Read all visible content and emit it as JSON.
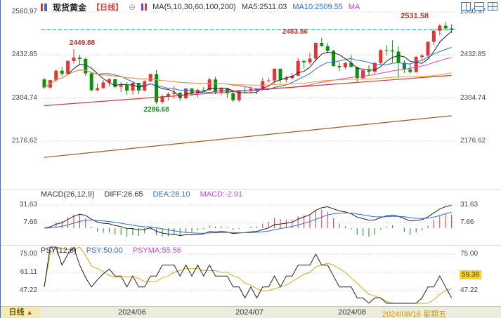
{
  "header": {
    "symbol": "现货黄金",
    "period": "【日线】",
    "collapse": "⊖",
    "ma_group": "MA(5,10,30,60,100,200)",
    "ma5": "MA5:2511.03",
    "ma10": "MA10:2509.55",
    "ma_overflow": "MA"
  },
  "main_axis": {
    "left": [
      "2560.97",
      "2432.85",
      "2304.74",
      "2176.62"
    ],
    "right": [
      "2560.97",
      "2432.85",
      "2304.74",
      "2176.62"
    ]
  },
  "macd": {
    "title": "MACD(26,12,9)",
    "diff_label": "DIFF:26.65",
    "dea_label": "DEA:28.10",
    "macd_label": "MACD:-2.91",
    "axis_left": [
      "31.63",
      "7.66"
    ],
    "axis_right": [
      "31.63",
      "7.66"
    ]
  },
  "psy": {
    "title": "PSY(12,6)",
    "psy_label": "PSY:50.00",
    "psyma_label": "PSYMA:55.56",
    "axis_left": [
      "75.00",
      "61.11",
      "47.22"
    ],
    "axis_right_top": "75.00",
    "axis_right_badge": "59.38",
    "axis_right_bottom": "47.22"
  },
  "bottom": {
    "period_tab": "日线",
    "arrow": "▲",
    "months": [
      "2024/06",
      "2024/07",
      "2024/08"
    ],
    "last_date": "2024/08/16 星期五"
  },
  "chart_data": {
    "type": "candlestick",
    "title": "现货黄金 日线 (Spot Gold Daily)",
    "x_range": [
      "2024-05-13",
      "2024-08-16"
    ],
    "y_axis_ticks": [
      2560.97,
      2432.85,
      2304.74,
      2176.62
    ],
    "latest_price_line": 2508,
    "up_color": "#e23535",
    "down_color": "#0f8f0f",
    "candles_ohlc": [
      [
        2360,
        2365,
        2332,
        2336
      ],
      [
        2336,
        2359,
        2333,
        2358
      ],
      [
        2358,
        2390,
        2352,
        2386
      ],
      [
        2386,
        2397,
        2371,
        2377
      ],
      [
        2377,
        2417,
        2375,
        2415
      ],
      [
        2415,
        2449.88,
        2407,
        2425
      ],
      [
        2425,
        2433,
        2404,
        2421
      ],
      [
        2421,
        2426,
        2370,
        2378
      ],
      [
        2378,
        2383,
        2325,
        2328
      ],
      [
        2328,
        2347,
        2325,
        2334
      ],
      [
        2334,
        2358,
        2332,
        2351
      ],
      [
        2351,
        2364,
        2339,
        2361
      ],
      [
        2361,
        2362,
        2333,
        2338
      ],
      [
        2338,
        2352,
        2322,
        2343
      ],
      [
        2343,
        2352,
        2314,
        2327
      ],
      [
        2327,
        2354,
        2315,
        2350
      ],
      [
        2350,
        2350,
        2316,
        2327
      ],
      [
        2327,
        2357,
        2325,
        2355
      ],
      [
        2355,
        2378,
        2352,
        2376
      ],
      [
        2376,
        2388,
        2286.68,
        2293
      ],
      [
        2293,
        2316,
        2287,
        2310
      ],
      [
        2310,
        2322,
        2297,
        2317
      ],
      [
        2317,
        2341,
        2303,
        2321
      ],
      [
        2321,
        2321,
        2296,
        2304
      ],
      [
        2304,
        2334,
        2301,
        2333
      ],
      [
        2333,
        2333,
        2310,
        2319
      ],
      [
        2319,
        2332,
        2306,
        2329
      ],
      [
        2329,
        2337,
        2322,
        2328
      ],
      [
        2328,
        2365,
        2327,
        2360
      ],
      [
        2360,
        2368,
        2316,
        2322
      ],
      [
        2322,
        2334,
        2313,
        2334
      ],
      [
        2334,
        2335,
        2306,
        2319
      ],
      [
        2319,
        2323,
        2293,
        2298
      ],
      [
        2298,
        2327,
        2293,
        2327
      ],
      [
        2327,
        2339,
        2319,
        2326
      ],
      [
        2326,
        2339,
        2318,
        2332
      ],
      [
        2332,
        2334,
        2316,
        2329
      ],
      [
        2329,
        2365,
        2327,
        2355
      ],
      [
        2355,
        2365,
        2352,
        2357
      ],
      [
        2357,
        2393,
        2348,
        2392
      ],
      [
        2392,
        2392,
        2349,
        2359
      ],
      [
        2359,
        2371,
        2351,
        2364
      ],
      [
        2364,
        2379,
        2360,
        2371
      ],
      [
        2371,
        2424,
        2371,
        2415
      ],
      [
        2415,
        2418,
        2391,
        2411
      ],
      [
        2411,
        2439,
        2404,
        2422
      ],
      [
        2422,
        2470,
        2414,
        2469
      ],
      [
        2469,
        2483.56,
        2458,
        2459
      ],
      [
        2459,
        2469,
        2437,
        2445
      ],
      [
        2445,
        2448,
        2398,
        2400
      ],
      [
        2400,
        2412,
        2384,
        2396
      ],
      [
        2396,
        2412,
        2391,
        2409
      ],
      [
        2409,
        2432,
        2396,
        2397
      ],
      [
        2397,
        2398,
        2353,
        2364
      ],
      [
        2364,
        2390,
        2360,
        2387
      ],
      [
        2387,
        2403,
        2373,
        2383
      ],
      [
        2383,
        2412,
        2375,
        2409
      ],
      [
        2409,
        2450,
        2404,
        2447
      ],
      [
        2447,
        2462,
        2432,
        2446
      ],
      [
        2446,
        2477,
        2411,
        2443
      ],
      [
        2443,
        2458,
        2364,
        2410
      ],
      [
        2410,
        2418,
        2379,
        2390
      ],
      [
        2390,
        2407,
        2378,
        2382
      ],
      [
        2382,
        2430,
        2380,
        2427
      ],
      [
        2427,
        2436,
        2414,
        2431
      ],
      [
        2431,
        2473,
        2423,
        2472
      ],
      [
        2472,
        2510,
        2462,
        2505
      ],
      [
        2505,
        2525,
        2492,
        2520
      ],
      [
        2520,
        2531.58,
        2505,
        2512
      ],
      [
        2512,
        2524,
        2498,
        2508
      ]
    ],
    "annotations": [
      {
        "text": "2449.88",
        "index": 5,
        "value": 2449.88,
        "pos": "above",
        "dx": 12,
        "color": "#d42a2a"
      },
      {
        "text": "2286.68",
        "index": 19,
        "value": 2286.68,
        "pos": "below",
        "dx": 0,
        "color": "#15931d"
      },
      {
        "text": "2483.56",
        "index": 47,
        "value": 2483.56,
        "pos": "above",
        "dx": -38,
        "color": "#d42a2a"
      },
      {
        "text": "2531.58",
        "index": 68,
        "value": 2531.58,
        "pos": "above",
        "dx": -44,
        "color": "#d42a2a",
        "bold": true
      }
    ],
    "ma_colors": {
      "ma5": "#222222",
      "ma10": "#2f6bd8",
      "ma30": "#d743d7",
      "ma60": "#e89c28"
    },
    "ma_trend_lines": {
      "ma100": {
        "first": 2282,
        "last": 2372,
        "color": "#c83c3c"
      },
      "ma200": {
        "first": 2128,
        "last": 2252,
        "color": "#9e5a28"
      }
    },
    "macd_params": [
      26,
      12,
      9
    ],
    "macd_values_latest": {
      "diff": 26.65,
      "dea": 28.1,
      "macd": -2.91
    },
    "macd_gridlines": [
      31.63,
      7.66
    ],
    "psy_params": [
      12,
      6
    ],
    "psy_values_latest": {
      "psy": 50.0,
      "psyma": 55.56
    },
    "psy_gridlines": [
      75.0,
      61.11,
      47.22
    ]
  }
}
